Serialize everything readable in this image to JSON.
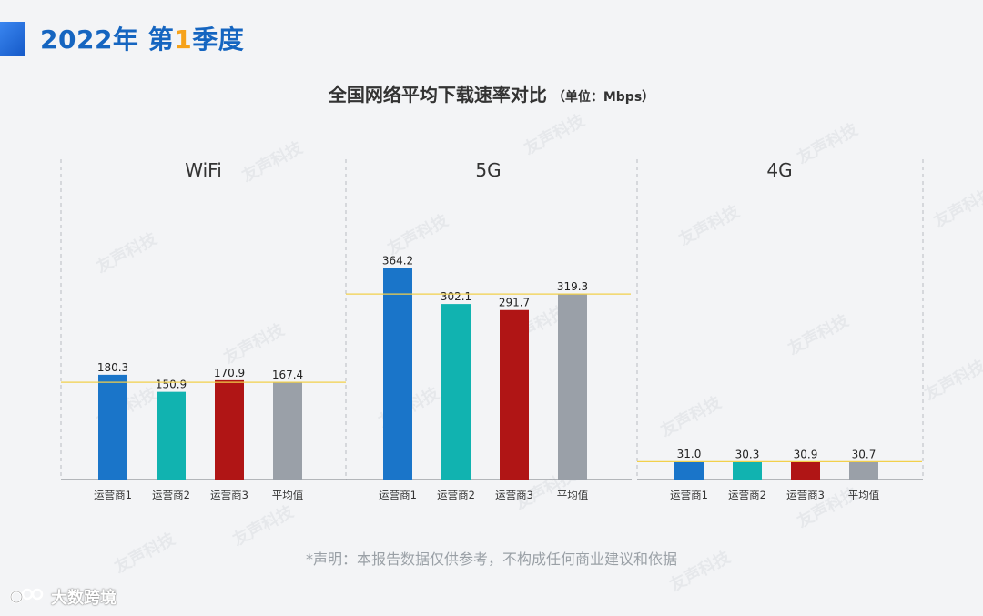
{
  "heading": {
    "year": "2022年",
    "prefix": "第",
    "quarter": "1",
    "suffix": "季度"
  },
  "title": {
    "main": "全国网络平均下载速率对比",
    "unit": "（单位：Mbps）"
  },
  "disclaimer": "*声明：本报告数据仅供参考，不构成任何商业建议和依据",
  "footer": {
    "brand": "大数跨境"
  },
  "watermark": {
    "text": "友声科技"
  },
  "colors": {
    "accent": "#1565c0",
    "highlight": "#f6a21a",
    "avg_line": "#f2d04b"
  },
  "chart_data": [
    {
      "type": "bar",
      "panel": "WiFi",
      "categories": [
        "运营商1",
        "运营商2",
        "运营商3",
        "平均值"
      ],
      "values": [
        180.3,
        150.9,
        170.9,
        167.4
      ],
      "value_labels": [
        "180.3",
        "150.9",
        "170.9",
        "167.4"
      ],
      "colors": [
        "#1a75c9",
        "#11b3b0",
        "#b01515",
        "#9aa0a8"
      ],
      "average": 167.4,
      "ylim": [
        0,
        400
      ]
    },
    {
      "type": "bar",
      "panel": "5G",
      "categories": [
        "运营商1",
        "运营商2",
        "运营商3",
        "平均值"
      ],
      "values": [
        364.2,
        302.1,
        291.7,
        319.3
      ],
      "value_labels": [
        "364.2",
        "302.1",
        "291.7",
        "319.3"
      ],
      "colors": [
        "#1a75c9",
        "#11b3b0",
        "#b01515",
        "#9aa0a8"
      ],
      "average": 319.3,
      "ylim": [
        0,
        400
      ]
    },
    {
      "type": "bar",
      "panel": "4G",
      "categories": [
        "运营商1",
        "运营商2",
        "运营商3",
        "平均值"
      ],
      "values": [
        31.0,
        30.3,
        30.9,
        30.7
      ],
      "value_labels": [
        "31.0",
        "30.3",
        "30.9",
        "30.7"
      ],
      "colors": [
        "#1a75c9",
        "#11b3b0",
        "#b01515",
        "#9aa0a8"
      ],
      "average": 30.7,
      "ylim": [
        0,
        400
      ]
    }
  ]
}
